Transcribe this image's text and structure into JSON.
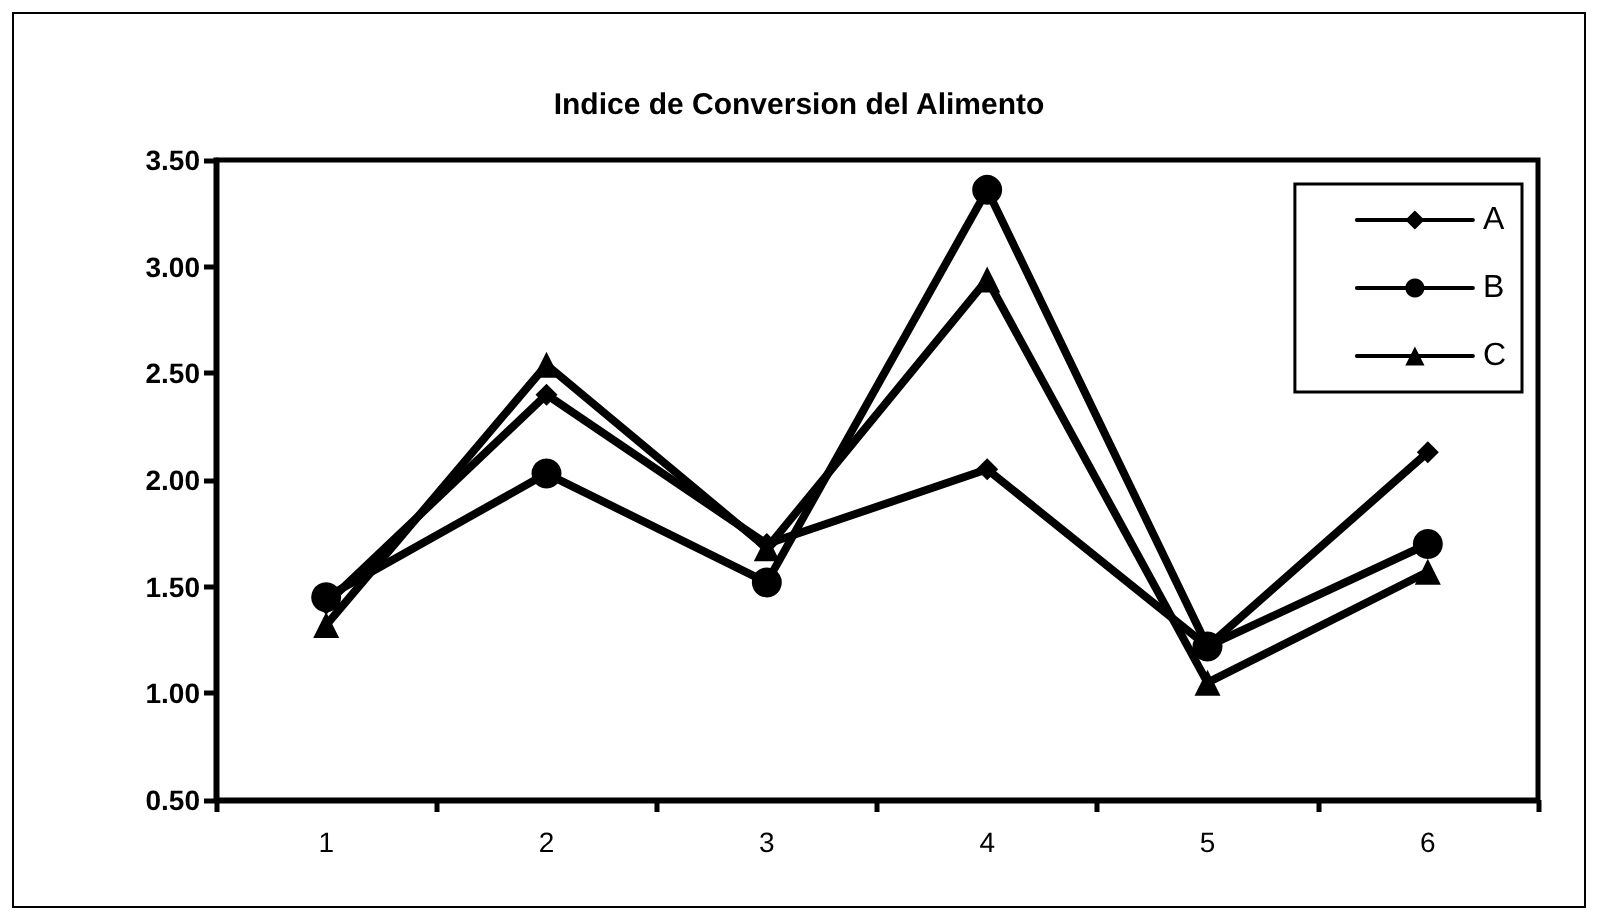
{
  "chart_data": {
    "type": "line",
    "title": "Indice de Conversion del Alimento",
    "categories": [
      "1",
      "2",
      "3",
      "4",
      "5",
      "6"
    ],
    "series": [
      {
        "name": "A",
        "color": "#000000",
        "marker": "diamond",
        "values": [
          1.42,
          2.4,
          1.7,
          2.05,
          1.22,
          2.13
        ]
      },
      {
        "name": "B",
        "color": "#000000",
        "marker": "circle",
        "values": [
          1.45,
          2.03,
          1.52,
          3.36,
          1.22,
          1.7
        ]
      },
      {
        "name": "C",
        "color": "#000000",
        "marker": "triangle",
        "values": [
          1.32,
          2.54,
          1.68,
          2.94,
          1.05,
          1.57
        ]
      }
    ],
    "ylim": [
      0.5,
      3.5
    ],
    "yticks": [
      {
        "value": 0.5,
        "label": "0.50"
      },
      {
        "value": 1,
        "label": "1.00"
      },
      {
        "value": 1.5,
        "label": "1.50"
      },
      {
        "value": 2,
        "label": "2.00"
      },
      {
        "value": 2.5,
        "label": "2.50"
      },
      {
        "value": 3,
        "label": "3.00"
      },
      {
        "value": 3.5,
        "label": "3.50"
      }
    ],
    "grid": false,
    "legend": "top right",
    "line_style": "solid"
  }
}
